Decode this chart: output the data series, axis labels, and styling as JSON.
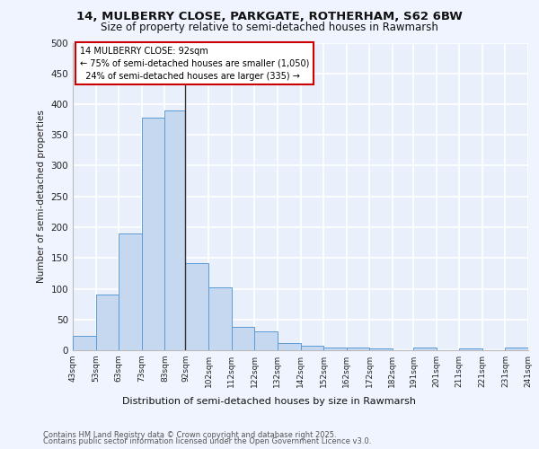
{
  "title1": "14, MULBERRY CLOSE, PARKGATE, ROTHERHAM, S62 6BW",
  "title2": "Size of property relative to semi-detached houses in Rawmarsh",
  "xlabel": "Distribution of semi-detached houses by size in Rawmarsh",
  "ylabel": "Number of semi-detached properties",
  "bin_labels": [
    "43sqm",
    "53sqm",
    "63sqm",
    "73sqm",
    "83sqm",
    "92sqm",
    "102sqm",
    "112sqm",
    "122sqm",
    "132sqm",
    "142sqm",
    "152sqm",
    "162sqm",
    "172sqm",
    "182sqm",
    "191sqm",
    "201sqm",
    "211sqm",
    "221sqm",
    "231sqm",
    "241sqm"
  ],
  "bin_values": [
    24,
    90,
    190,
    378,
    390,
    141,
    102,
    38,
    30,
    11,
    8,
    5,
    5,
    3,
    0,
    5,
    0,
    3,
    0,
    5
  ],
  "property_label": "14 MULBERRY CLOSE: 92sqm",
  "pct_smaller": 75,
  "n_smaller": 1050,
  "pct_larger": 24,
  "n_larger": 335,
  "bar_color": "#c5d8f0",
  "bar_edge_color": "#5b9bd5",
  "vline_color": "#333333",
  "bg_color": "#eaf0fb",
  "grid_color": "#ffffff",
  "footer1": "Contains HM Land Registry data © Crown copyright and database right 2025.",
  "footer2": "Contains public sector information licensed under the Open Government Licence v3.0.",
  "ylim": [
    0,
    500
  ],
  "yticks": [
    0,
    50,
    100,
    150,
    200,
    250,
    300,
    350,
    400,
    450,
    500
  ],
  "fig_bg": "#f0f4ff"
}
